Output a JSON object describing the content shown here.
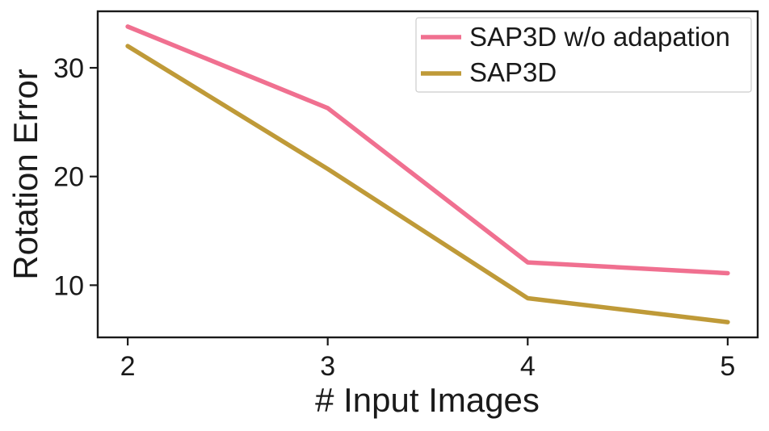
{
  "chart_data": {
    "type": "line",
    "title": "",
    "xlabel": "# Input Images",
    "ylabel": "Rotation Error",
    "x": [
      2,
      3,
      4,
      5
    ],
    "xticks": [
      "2",
      "3",
      "4",
      "5"
    ],
    "yticks": [
      "10",
      "20",
      "30"
    ],
    "xlim": [
      1.85,
      5.15
    ],
    "ylim": [
      5.2,
      35.2
    ],
    "grid": false,
    "legend_position": "top-right",
    "series": [
      {
        "name": "SAP3D w/o adapation",
        "color": "#f07090",
        "values": [
          33.8,
          26.3,
          12.1,
          11.1
        ]
      },
      {
        "name": "SAP3D",
        "color": "#bf9a38",
        "values": [
          32.0,
          20.7,
          8.8,
          6.6
        ]
      }
    ]
  }
}
